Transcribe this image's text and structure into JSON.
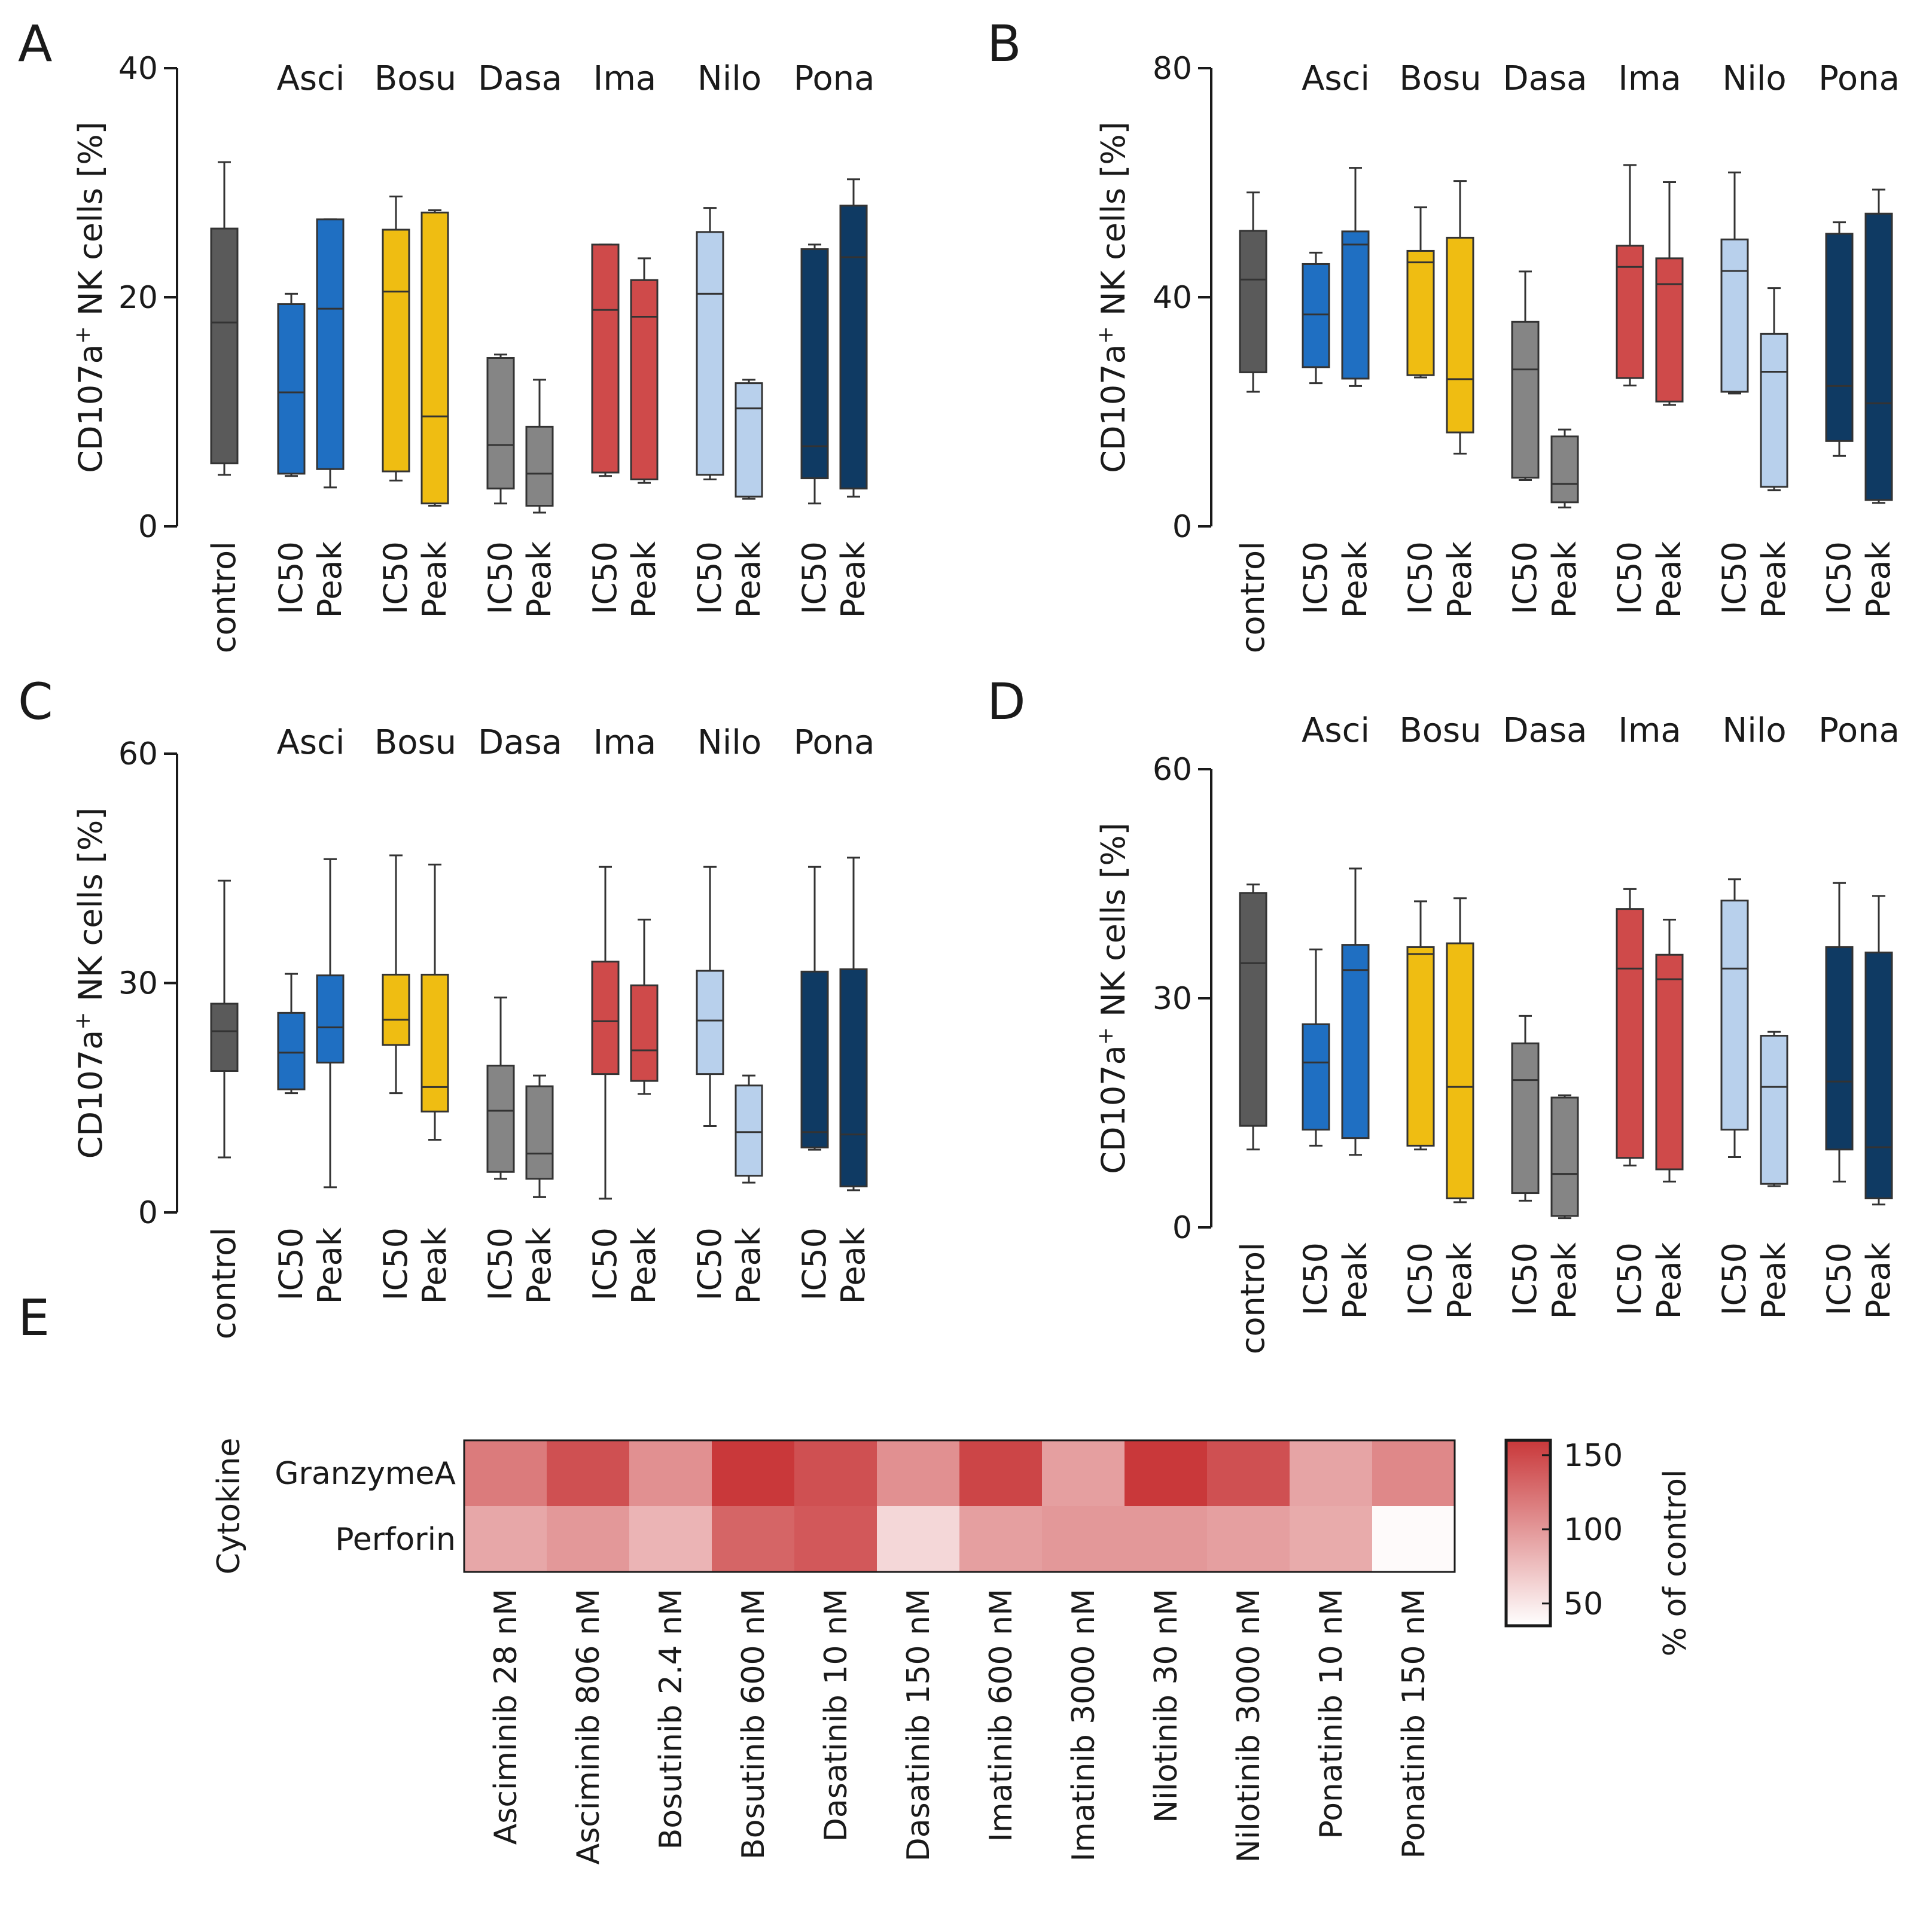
{
  "figure": {
    "colors": {
      "control": "#5a5a5a",
      "Asci": "#1f6fc2",
      "Bosu": "#efbd12",
      "Dasa": "#858585",
      "Ima": "#cf4a4a",
      "Nilo": "#b8d0ec",
      "Pona": "#0f3a63"
    },
    "heatmap_colors": {
      "low": "#ffffff",
      "high": "#c9383a"
    }
  },
  "chart_data": [
    {
      "panel": "A",
      "type": "box",
      "ylabel_main": "CD107a",
      "ylabel_sup": "+",
      "ylabel_rest": " NK cells [%]",
      "ylim": [
        0,
        40
      ],
      "yticks": [
        0,
        20,
        40
      ],
      "groups": [
        "Asci",
        "Bosu",
        "Dasa",
        "Ima",
        "Nilo",
        "Pona"
      ],
      "categories": [
        "control",
        "IC50",
        "Peak",
        "IC50",
        "Peak",
        "IC50",
        "Peak",
        "IC50",
        "Peak",
        "IC50",
        "Peak",
        "IC50",
        "Peak"
      ],
      "series": [
        {
          "name": "control",
          "drug": "control",
          "min": 4.5,
          "q1": 5.5,
          "median": 17.8,
          "q3": 26,
          "max": 31.8
        },
        {
          "name": "Asci IC50",
          "drug": "Asci",
          "min": 4.4,
          "q1": 4.6,
          "median": 11.7,
          "q3": 19.4,
          "max": 20.3
        },
        {
          "name": "Asci Peak",
          "drug": "Asci",
          "min": 3.4,
          "q1": 5,
          "median": 19,
          "q3": 26.8,
          "max": 26.8
        },
        {
          "name": "Bosu IC50",
          "drug": "Bosu",
          "min": 4,
          "q1": 4.8,
          "median": 20.5,
          "q3": 25.9,
          "max": 28.8
        },
        {
          "name": "Bosu Peak",
          "drug": "Bosu",
          "min": 1.8,
          "q1": 2,
          "median": 9.6,
          "q3": 27.4,
          "max": 27.6
        },
        {
          "name": "Dasa IC50",
          "drug": "Dasa",
          "min": 2,
          "q1": 3.3,
          "median": 7.1,
          "q3": 14.7,
          "max": 15
        },
        {
          "name": "Dasa Peak",
          "drug": "Dasa",
          "min": 1.2,
          "q1": 1.8,
          "median": 4.6,
          "q3": 8.7,
          "max": 12.8
        },
        {
          "name": "Ima IC50",
          "drug": "Ima",
          "min": 4.4,
          "q1": 4.7,
          "median": 18.9,
          "q3": 24.6,
          "max": 24.6
        },
        {
          "name": "Ima Peak",
          "drug": "Ima",
          "min": 3.8,
          "q1": 4.1,
          "median": 18.3,
          "q3": 21.5,
          "max": 23.4
        },
        {
          "name": "Nilo IC50",
          "drug": "Nilo",
          "min": 4.1,
          "q1": 4.5,
          "median": 20.3,
          "q3": 25.7,
          "max": 27.8
        },
        {
          "name": "Nilo Peak",
          "drug": "Nilo",
          "min": 2.4,
          "q1": 2.6,
          "median": 10.3,
          "q3": 12.5,
          "max": 12.8
        },
        {
          "name": "Pona IC50",
          "drug": "Pona",
          "min": 2,
          "q1": 4.2,
          "median": 7,
          "q3": 24.2,
          "max": 24.6
        },
        {
          "name": "Pona Peak",
          "drug": "Pona",
          "min": 2.6,
          "q1": 3.3,
          "median": 23.5,
          "q3": 28,
          "max": 30.3
        }
      ]
    },
    {
      "panel": "B",
      "type": "box",
      "ylabel_main": "CD107a",
      "ylabel_sup": "+",
      "ylabel_rest": " NK cells [%]",
      "ylim": [
        0,
        80
      ],
      "yticks": [
        0,
        40,
        80
      ],
      "groups": [
        "Asci",
        "Bosu",
        "Dasa",
        "Ima",
        "Nilo",
        "Pona"
      ],
      "categories": [
        "control",
        "IC50",
        "Peak",
        "IC50",
        "Peak",
        "IC50",
        "Peak",
        "IC50",
        "Peak",
        "IC50",
        "Peak",
        "IC50",
        "Peak"
      ],
      "series": [
        {
          "name": "control",
          "drug": "control",
          "min": 23.5,
          "q1": 26.9,
          "median": 43.1,
          "q3": 51.6,
          "max": 58.3
        },
        {
          "name": "Asci IC50",
          "drug": "Asci",
          "min": 25,
          "q1": 27.8,
          "median": 37,
          "q3": 45.8,
          "max": 47.8
        },
        {
          "name": "Asci Peak",
          "drug": "Asci",
          "min": 24.5,
          "q1": 25.8,
          "median": 49.2,
          "q3": 51.5,
          "max": 62.6
        },
        {
          "name": "Bosu IC50",
          "drug": "Bosu",
          "min": 26,
          "q1": 26.4,
          "median": 46.1,
          "q3": 48.1,
          "max": 55.7
        },
        {
          "name": "Bosu Peak",
          "drug": "Bosu",
          "min": 12.7,
          "q1": 16.4,
          "median": 25.7,
          "q3": 50.4,
          "max": 60.3
        },
        {
          "name": "Dasa IC50",
          "drug": "Dasa",
          "min": 8.1,
          "q1": 8.5,
          "median": 27.4,
          "q3": 35.7,
          "max": 44.5
        },
        {
          "name": "Dasa Peak",
          "drug": "Dasa",
          "min": 3.3,
          "q1": 4.2,
          "median": 7.4,
          "q3": 15.7,
          "max": 16.9
        },
        {
          "name": "Ima IC50",
          "drug": "Ima",
          "min": 24.6,
          "q1": 25.9,
          "median": 45.3,
          "q3": 49,
          "max": 63.1
        },
        {
          "name": "Ima Peak",
          "drug": "Ima",
          "min": 21.2,
          "q1": 21.8,
          "median": 42.3,
          "q3": 46.8,
          "max": 60.1
        },
        {
          "name": "Nilo IC50",
          "drug": "Nilo",
          "min": 23.2,
          "q1": 23.5,
          "median": 44.6,
          "q3": 50.1,
          "max": 61.8
        },
        {
          "name": "Nilo Peak",
          "drug": "Nilo",
          "min": 6.3,
          "q1": 6.9,
          "median": 27,
          "q3": 33.6,
          "max": 41.6
        },
        {
          "name": "Pona IC50",
          "drug": "Pona",
          "min": 12.3,
          "q1": 14.9,
          "median": 24.5,
          "q3": 51.1,
          "max": 53.1
        },
        {
          "name": "Pona Peak",
          "drug": "Pona",
          "min": 4.1,
          "q1": 4.6,
          "median": 21.5,
          "q3": 54.6,
          "max": 58.8
        }
      ]
    },
    {
      "panel": "C",
      "type": "box",
      "ylabel_main": "CD107a",
      "ylabel_sup": "+",
      "ylabel_rest": " NK cells [%]",
      "ylim": [
        0,
        60
      ],
      "yticks": [
        0,
        30,
        60
      ],
      "groups": [
        "Asci",
        "Bosu",
        "Dasa",
        "Ima",
        "Nilo",
        "Pona"
      ],
      "categories": [
        "control",
        "IC50",
        "Peak",
        "IC50",
        "Peak",
        "IC50",
        "Peak",
        "IC50",
        "Peak",
        "IC50",
        "Peak",
        "IC50",
        "Peak"
      ],
      "series": [
        {
          "name": "control",
          "drug": "control",
          "min": 7.2,
          "q1": 18.5,
          "median": 23.7,
          "q3": 27.3,
          "max": 43.4
        },
        {
          "name": "Asci IC50",
          "drug": "Asci",
          "min": 15.6,
          "q1": 16.1,
          "median": 20.9,
          "q3": 26.1,
          "max": 31.2
        },
        {
          "name": "Asci Peak",
          "drug": "Asci",
          "min": 3.3,
          "q1": 19.6,
          "median": 24.2,
          "q3": 31,
          "max": 46.2
        },
        {
          "name": "Bosu IC50",
          "drug": "Bosu",
          "min": 15.6,
          "q1": 21.9,
          "median": 25.2,
          "q3": 31.1,
          "max": 46.7
        },
        {
          "name": "Bosu Peak",
          "drug": "Bosu",
          "min": 9.5,
          "q1": 13.2,
          "median": 16.4,
          "q3": 31.1,
          "max": 45.5
        },
        {
          "name": "Dasa IC50",
          "drug": "Dasa",
          "min": 4.4,
          "q1": 5.3,
          "median": 13.3,
          "q3": 19.2,
          "max": 28.1
        },
        {
          "name": "Dasa Peak",
          "drug": "Dasa",
          "min": 2,
          "q1": 4.4,
          "median": 7.7,
          "q3": 16.5,
          "max": 17.9
        },
        {
          "name": "Ima IC50",
          "drug": "Ima",
          "min": 1.8,
          "q1": 18.1,
          "median": 25,
          "q3": 32.8,
          "max": 45.2
        },
        {
          "name": "Ima Peak",
          "drug": "Ima",
          "min": 15.5,
          "q1": 17.2,
          "median": 21.2,
          "q3": 29.7,
          "max": 38.3
        },
        {
          "name": "Nilo IC50",
          "drug": "Nilo",
          "min": 11.3,
          "q1": 18.1,
          "median": 25.1,
          "q3": 31.6,
          "max": 45.2
        },
        {
          "name": "Nilo Peak",
          "drug": "Nilo",
          "min": 3.9,
          "q1": 4.8,
          "median": 10.5,
          "q3": 16.6,
          "max": 17.9
        },
        {
          "name": "Pona IC50",
          "drug": "Pona",
          "min": 8.2,
          "q1": 8.5,
          "median": 10.5,
          "q3": 31.5,
          "max": 45.2
        },
        {
          "name": "Pona Peak",
          "drug": "Pona",
          "min": 2.9,
          "q1": 3.4,
          "median": 10.2,
          "q3": 31.8,
          "max": 46.4
        }
      ]
    },
    {
      "panel": "D",
      "type": "box",
      "ylabel_main": "CD107a",
      "ylabel_sup": "+",
      "ylabel_rest": " NK cells [%]",
      "ylim": [
        0,
        60
      ],
      "yticks": [
        0,
        30,
        60
      ],
      "groups": [
        "Asci",
        "Bosu",
        "Dasa",
        "Ima",
        "Nilo",
        "Pona"
      ],
      "categories": [
        "control",
        "IC50",
        "Peak",
        "IC50",
        "Peak",
        "IC50",
        "Peak",
        "IC50",
        "Peak",
        "IC50",
        "Peak",
        "IC50",
        "Peak"
      ],
      "series": [
        {
          "name": "control",
          "drug": "control",
          "min": 10.2,
          "q1": 13.3,
          "median": 34.6,
          "q3": 43.8,
          "max": 44.9
        },
        {
          "name": "Asci IC50",
          "drug": "Asci",
          "min": 10.7,
          "q1": 12.8,
          "median": 21.6,
          "q3": 26.6,
          "max": 36.4
        },
        {
          "name": "Asci Peak",
          "drug": "Asci",
          "min": 9.5,
          "q1": 11.7,
          "median": 33.7,
          "q3": 37,
          "max": 47
        },
        {
          "name": "Bosu IC50",
          "drug": "Bosu",
          "min": 10.2,
          "q1": 10.7,
          "median": 35.8,
          "q3": 36.7,
          "max": 42.7
        },
        {
          "name": "Bosu Peak",
          "drug": "Bosu",
          "min": 3.3,
          "q1": 3.8,
          "median": 18.4,
          "q3": 37.2,
          "max": 43.1
        },
        {
          "name": "Dasa IC50",
          "drug": "Dasa",
          "min": 3.5,
          "q1": 4.5,
          "median": 19.3,
          "q3": 24.1,
          "max": 27.7
        },
        {
          "name": "Dasa Peak",
          "drug": "Dasa",
          "min": 1.2,
          "q1": 1.5,
          "median": 7,
          "q3": 17,
          "max": 17.3
        },
        {
          "name": "Ima IC50",
          "drug": "Ima",
          "min": 8.1,
          "q1": 9.1,
          "median": 33.9,
          "q3": 41.7,
          "max": 44.3
        },
        {
          "name": "Ima Peak",
          "drug": "Ima",
          "min": 6,
          "q1": 7.6,
          "median": 32.5,
          "q3": 35.7,
          "max": 40.3
        },
        {
          "name": "Nilo IC50",
          "drug": "Nilo",
          "min": 9.2,
          "q1": 12.8,
          "median": 33.9,
          "q3": 42.8,
          "max": 45.6
        },
        {
          "name": "Nilo Peak",
          "drug": "Nilo",
          "min": 5.4,
          "q1": 5.7,
          "median": 18.4,
          "q3": 25.1,
          "max": 25.6
        },
        {
          "name": "Pona IC50",
          "drug": "Pona",
          "min": 6,
          "q1": 10.2,
          "median": 19.1,
          "q3": 36.7,
          "max": 45.1
        },
        {
          "name": "Pona Peak",
          "drug": "Pona",
          "min": 3,
          "q1": 3.8,
          "median": 10.5,
          "q3": 36,
          "max": 43.4
        }
      ]
    },
    {
      "panel": "E",
      "type": "heatmap",
      "y_axis_title": "Cytokine",
      "rows": [
        "GranzymeA",
        "Perforin"
      ],
      "columns": [
        "Asciminib 28 nM",
        "Asciminib 806 nM",
        "Bosutinib 2.4 nM",
        "Bosutinib 600 nM",
        "Dasatinib 10 nM",
        "Dasatinib 150 nM",
        "Imatinib 600 nM",
        "Imatinib 3000 nM",
        "Nilotinib 30 nM",
        "Nilotinib 3000 nM",
        "Ponatinib 10 nM",
        "Ponatinib 150 nM"
      ],
      "values": [
        [
          118,
          145,
          105,
          160,
          145,
          105,
          152,
          95,
          160,
          145,
          92,
          110
        ],
        [
          90,
          100,
          82,
          132,
          140,
          60,
          95,
          100,
          100,
          95,
          88,
          38
        ]
      ],
      "colorbar_title": "% of control",
      "colorbar_range": [
        35,
        160
      ],
      "colorbar_ticks": [
        50,
        100,
        150
      ]
    }
  ]
}
